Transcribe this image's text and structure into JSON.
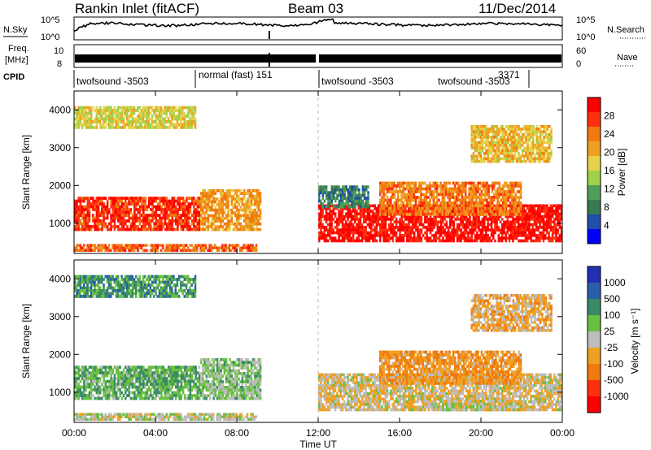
{
  "header": {
    "title": "Rankin Inlet (fitACF)",
    "beam": "Beam 03",
    "date": "11/Dec/2014"
  },
  "top_panels": {
    "nsky_label": "N.Sky",
    "nsearch_label": "N.Search",
    "freq_label_1": "Freq.",
    "freq_label_2": "[MHz]",
    "nave_label": "Nave",
    "cpid_label": "CPID",
    "noise_ticks_left": [
      "10^5",
      "10^0"
    ],
    "noise_ticks_right": [
      "10^5",
      "10^0"
    ],
    "freq_ticks_left": [
      "10",
      "8"
    ],
    "freq_ticks_right": [
      "60",
      "0"
    ],
    "cpid_segments": [
      {
        "label": "twofsound -3503",
        "start_hr": 0.0,
        "end_hr": 6.0
      },
      {
        "label": "normal (fast) 151",
        "start_hr": 6.0,
        "end_hr": 12.0
      },
      {
        "label": "twofsound -3503",
        "start_hr": 12.0,
        "end_hr": 18.0
      },
      {
        "label": "twofsound -3503",
        "start_hr": 18.0,
        "end_hr": 22.2
      },
      {
        "label": "3371",
        "start_hr": 22.2,
        "end_hr": 22.4
      }
    ]
  },
  "panels": {
    "power": {
      "ylabel": "Slant Range [km]",
      "colorbar_label": "Power [dB]",
      "colorbar_ticks": [
        "28",
        "24",
        "20",
        "16",
        "12",
        "8",
        "4"
      ]
    },
    "velocity": {
      "ylabel": "Slant Range [km]",
      "colorbar_label": "Velocity [m s⁻¹]",
      "colorbar_ticks": [
        "1000",
        "500",
        "100",
        "25",
        "-25",
        "-100",
        "-500",
        "-1000"
      ]
    }
  },
  "xaxis": {
    "label": "Time UT",
    "ticks": [
      "00:00",
      "04:00",
      "08:00",
      "12:00",
      "16:00",
      "20:00",
      "00:00"
    ]
  },
  "yticks": [
    "4000",
    "3000",
    "2000",
    "1000"
  ],
  "colors": {
    "power_scale": [
      "#0000ff",
      "#1f4fa8",
      "#3a7a52",
      "#4f9f5a",
      "#9fd24a",
      "#e6d24a",
      "#f0a020",
      "#f07a10",
      "#ff3010",
      "#ff0000"
    ],
    "velocity_scale": [
      "#2030b0",
      "#2a5ea8",
      "#3a8a68",
      "#68c040",
      "#bdbdbd",
      "#f0a020",
      "#f07a10",
      "#ff3010",
      "#ff0000"
    ]
  },
  "chart_data": [
    {
      "type": "heatmap",
      "title": "Power [dB]",
      "xlabel": "Time UT",
      "ylabel": "Slant Range [km]",
      "xlim": [
        0,
        24
      ],
      "ylim": [
        200,
        4500
      ],
      "colorbar_range": [
        0,
        30
      ],
      "regions": [
        {
          "x": [
            0.0,
            6.2
          ],
          "y": [
            800,
            1700
          ],
          "value": 26
        },
        {
          "x": [
            6.2,
            9.2
          ],
          "y": [
            800,
            1900
          ],
          "value": 20
        },
        {
          "x": [
            0.0,
            9.0
          ],
          "y": [
            250,
            450
          ],
          "value": 24
        },
        {
          "x": [
            12.0,
            24.0
          ],
          "y": [
            500,
            1500
          ],
          "value": 28
        },
        {
          "x": [
            15.0,
            22.0
          ],
          "y": [
            1200,
            2100
          ],
          "value": 22
        },
        {
          "x": [
            12.0,
            14.5
          ],
          "y": [
            1400,
            2000
          ],
          "value": 8
        },
        {
          "x": [
            0.0,
            6.0
          ],
          "y": [
            3500,
            4100
          ],
          "value": 16
        },
        {
          "x": [
            19.5,
            23.5
          ],
          "y": [
            2600,
            3600
          ],
          "value": 18
        }
      ]
    },
    {
      "type": "heatmap",
      "title": "Velocity [m s-1]",
      "xlabel": "Time UT",
      "ylabel": "Slant Range [km]",
      "xlim": [
        0,
        24
      ],
      "ylim": [
        200,
        4500
      ],
      "colorbar_range": [
        -1000,
        1000
      ],
      "regions": [
        {
          "x": [
            0.0,
            6.2
          ],
          "y": [
            800,
            1700
          ],
          "value": 300
        },
        {
          "x": [
            6.2,
            9.2
          ],
          "y": [
            800,
            1900
          ],
          "value": 150
        },
        {
          "x": [
            0.0,
            9.0
          ],
          "y": [
            250,
            450
          ],
          "value": 50
        },
        {
          "x": [
            12.0,
            24.0
          ],
          "y": [
            500,
            1500
          ],
          "value": -80
        },
        {
          "x": [
            15.0,
            22.0
          ],
          "y": [
            1200,
            2100
          ],
          "value": -300
        },
        {
          "x": [
            18.0,
            22.0
          ],
          "y": [
            500,
            800
          ],
          "value": 0
        },
        {
          "x": [
            0.0,
            6.0
          ],
          "y": [
            3500,
            4100
          ],
          "value": 400
        },
        {
          "x": [
            19.5,
            23.5
          ],
          "y": [
            2600,
            3600
          ],
          "value": -200
        }
      ]
    }
  ]
}
